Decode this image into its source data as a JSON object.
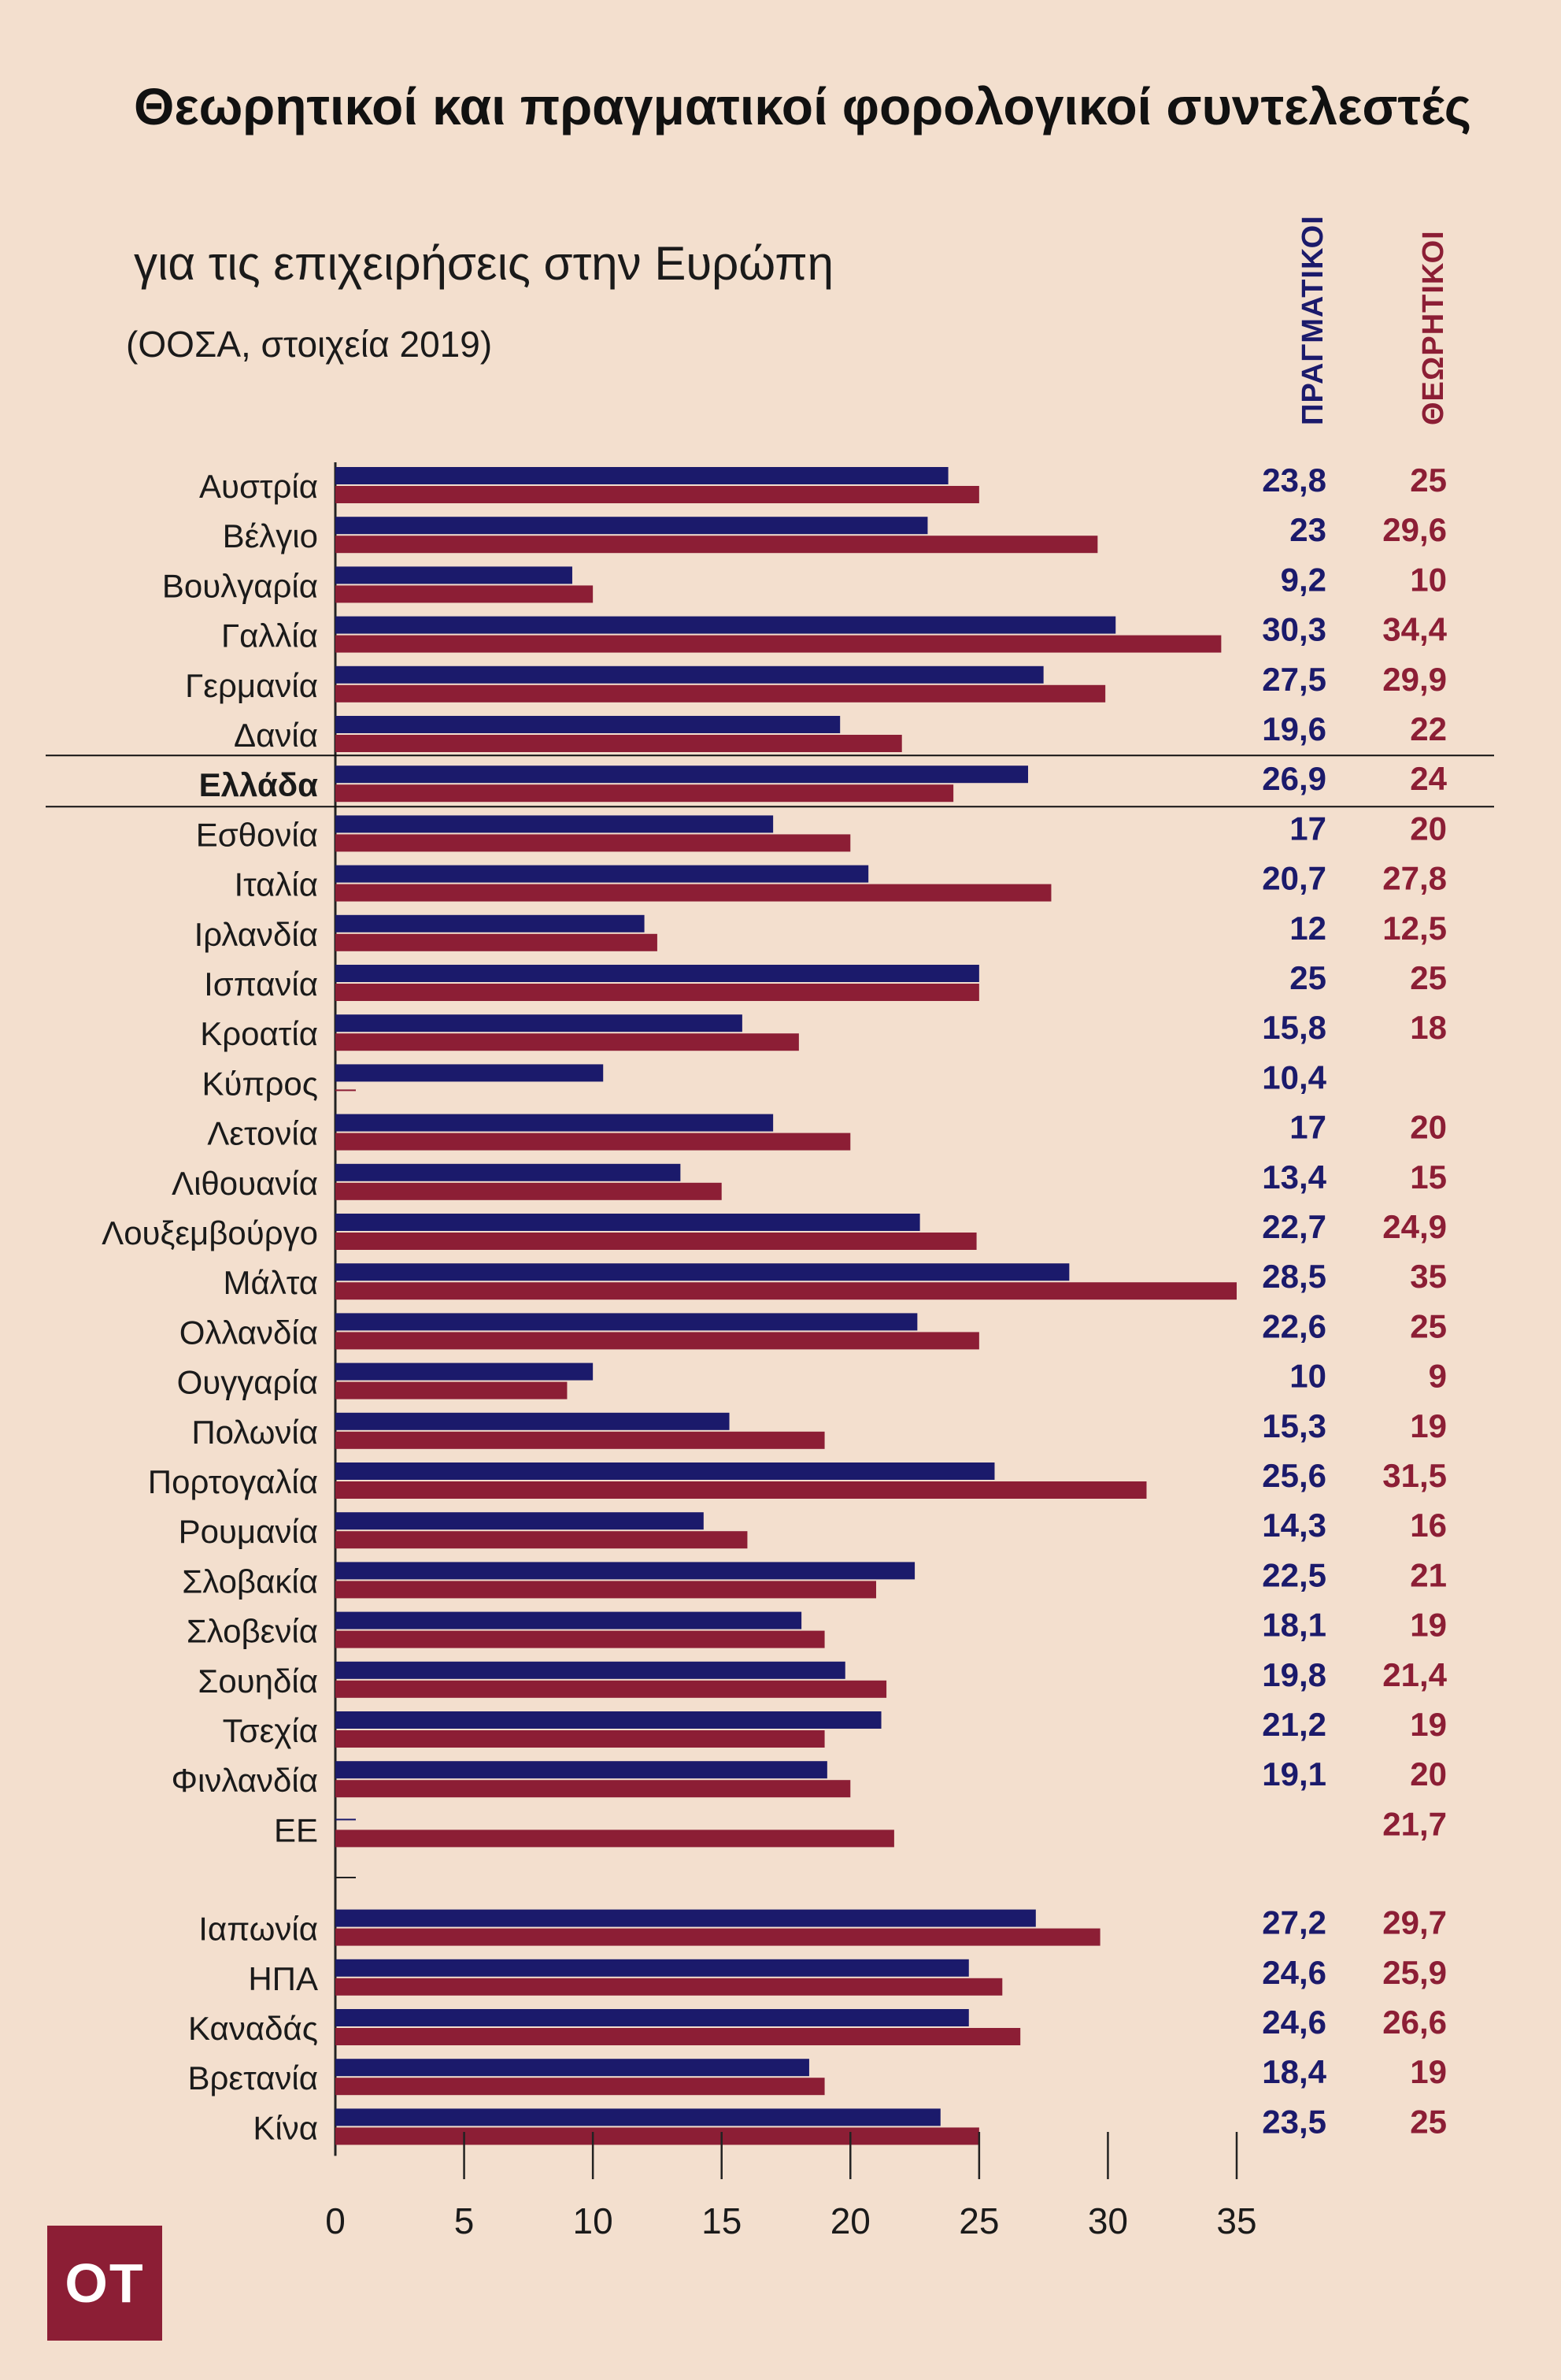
{
  "title": "Θεωρητικοί και πραγματικοί φορολογικοί συντελεστές",
  "subtitle": "για τις επιχειρήσεις στην Ευρώπη",
  "source": "(ΟΟΣΑ, στοιχεία 2019)",
  "column_headers": {
    "actual": "ΠΡΑΓΜΑΤΙΚΟΙ",
    "nominal": "ΘΕΩΡΗΤΙΚΟΙ"
  },
  "logo": "ΟΤ",
  "colors": {
    "actual": "#1b1a6b",
    "nominal": "#8c1e35",
    "background": "#f3dfce"
  },
  "chart_data": {
    "type": "bar",
    "orientation": "horizontal",
    "categories": [
      "Αυστρία",
      "Βέλγιο",
      "Βουλγαρία",
      "Γαλλία",
      "Γερμανία",
      "Δανία",
      "Ελλάδα",
      "Εσθονία",
      "Ιταλία",
      "Ιρλανδία",
      "Ισπανία",
      "Κροατία",
      "Κύπρος",
      "Λετονία",
      "Λιθουανία",
      "Λουξεμβούργο",
      "Μάλτα",
      "Ολλανδία",
      "Ουγγαρία",
      "Πολωνία",
      "Πορτογαλία",
      "Ρουμανία",
      "Σλοβακία",
      "Σλοβενία",
      "Σουηδία",
      "Τσεχία",
      "Φινλανδία",
      "ΕΕ",
      "Ιαπωνία",
      "ΗΠΑ",
      "Καναδάς",
      "Βρετανία",
      "Κίνα"
    ],
    "highlight": "Ελλάδα",
    "series": [
      {
        "name": "ΠΡΑΓΜΑΤΙΚΟΙ",
        "values": [
          23.8,
          23,
          9.2,
          30.3,
          27.5,
          19.6,
          26.9,
          17,
          20.7,
          12,
          25,
          15.8,
          10.4,
          17,
          13.4,
          22.7,
          28.5,
          22.6,
          10,
          15.3,
          25.6,
          14.3,
          22.5,
          18.1,
          19.8,
          21.2,
          19.1,
          null,
          27.2,
          24.6,
          24.6,
          18.4,
          23.5
        ],
        "labels": [
          "23,8",
          "23",
          "9,2",
          "30,3",
          "27,5",
          "19,6",
          "26,9",
          "17",
          "20,7",
          "12",
          "25",
          "15,8",
          "10,4",
          "17",
          "13,4",
          "22,7",
          "28,5",
          "22,6",
          "10",
          "15,3",
          "25,6",
          "14,3",
          "22,5",
          "18,1",
          "19,8",
          "21,2",
          "19,1",
          "",
          "27,2",
          "24,6",
          "24,6",
          "18,4",
          "23,5"
        ]
      },
      {
        "name": "ΘΕΩΡΗΤΙΚΟΙ",
        "values": [
          25,
          29.6,
          10,
          34.4,
          29.9,
          22,
          24,
          20,
          27.8,
          12.5,
          25,
          18,
          null,
          20,
          15,
          24.9,
          35,
          25,
          9,
          19,
          31.5,
          16,
          21,
          19,
          21.4,
          19,
          20,
          21.7,
          29.7,
          25.9,
          26.6,
          19,
          25
        ],
        "labels": [
          "25",
          "29,6",
          "10",
          "34,4",
          "29,9",
          "22",
          "24",
          "20",
          "27,8",
          "12,5",
          "25",
          "18",
          "",
          "20",
          "15",
          "24,9",
          "35",
          "25",
          "9",
          "19",
          "31,5",
          "16",
          "21",
          "19",
          "21,4",
          "19",
          "20",
          "21,7",
          "29,7",
          "25,9",
          "26,6",
          "19",
          "25"
        ]
      }
    ],
    "xlim": [
      0,
      35
    ],
    "x_ticks": [
      "0",
      "5",
      "10",
      "15",
      "20",
      "25",
      "30",
      "35"
    ],
    "grid": false
  }
}
